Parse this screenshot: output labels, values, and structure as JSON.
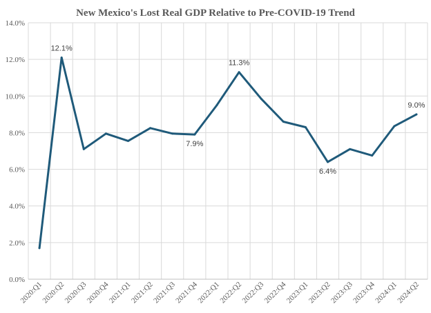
{
  "colors": {
    "series": "#1f5a7a",
    "grid": "#d9d9d9",
    "text": "#595959"
  },
  "chart_data": {
    "type": "line",
    "title": "New Mexico's Lost Real GDP Relative to Pre-COVID-19  Trend",
    "xlabel": "",
    "ylabel": "",
    "grid": true,
    "legend": "none",
    "ylim": [
      0,
      14
    ],
    "y_ticks": [
      0,
      2,
      4,
      6,
      8,
      10,
      12,
      14
    ],
    "y_tick_labels": [
      "0.0%",
      "2.0%",
      "4.0%",
      "6.0%",
      "8.0%",
      "10.0%",
      "12.0%",
      "14.0%"
    ],
    "categories": [
      "2020:Q1",
      "2020:Q2",
      "2020:Q3",
      "2020:Q4",
      "2021:Q1",
      "2021:Q2",
      "2021:Q3",
      "2021:Q4",
      "2022:Q1",
      "2022:Q2",
      "2022:Q3",
      "2022:Q4",
      "2023:Q1",
      "2023:Q2",
      "2023:Q3",
      "2023:Q4",
      "2024:Q1",
      "2024:Q2"
    ],
    "series": [
      {
        "values": [
          1.7,
          12.1,
          7.1,
          7.95,
          7.55,
          8.25,
          7.95,
          7.9,
          9.5,
          11.3,
          9.85,
          8.6,
          8.3,
          6.4,
          7.1,
          6.75,
          8.35,
          9.0
        ]
      }
    ],
    "data_labels": [
      {
        "index": 1,
        "text": "12.1%",
        "position": "above"
      },
      {
        "index": 7,
        "text": "7.9%",
        "position": "below"
      },
      {
        "index": 9,
        "text": "11.3%",
        "position": "above"
      },
      {
        "index": 13,
        "text": "6.4%",
        "position": "below"
      },
      {
        "index": 17,
        "text": "9.0%",
        "position": "above"
      }
    ]
  }
}
